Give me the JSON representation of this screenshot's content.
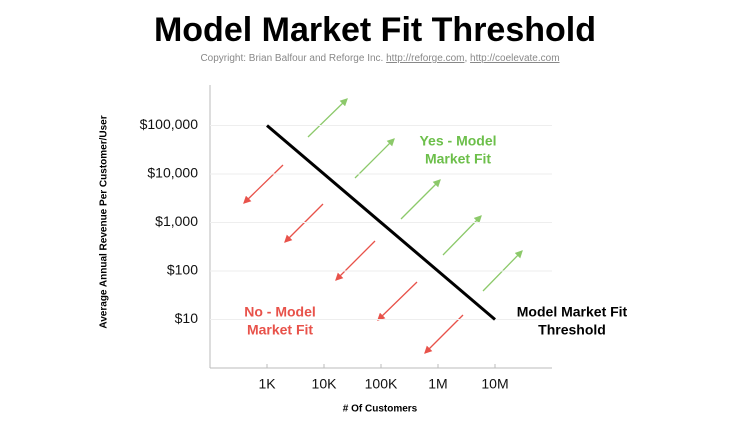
{
  "chart_data": {
    "type": "line",
    "title": "Model Market Fit Threshold",
    "subtitle_parts": [
      "Copyright:  Brian Balfour and Reforge Inc. ",
      "http://reforge.com",
      ", ",
      "http://coelevate.com"
    ],
    "x_label": "# Of Customers",
    "y_label": "Average Annual Revenue Per Customer/User",
    "x": [
      1000,
      10000000
    ],
    "series": [
      {
        "color": "#000000",
        "values": [
          100000,
          10
        ]
      }
    ],
    "xscale": "log",
    "yscale": "log",
    "xlim": [
      100,
      100000000
    ],
    "ylim": [
      1,
      1000000
    ],
    "xticks": [
      {
        "value": 1000,
        "label": "1K"
      },
      {
        "value": 10000,
        "label": "10K"
      },
      {
        "value": 100000,
        "label": "100K"
      },
      {
        "value": 1000000,
        "label": "1M"
      },
      {
        "value": 10000000,
        "label": "10M"
      }
    ],
    "yticks": [
      {
        "value": 10,
        "label": "$10"
      },
      {
        "value": 100,
        "label": "$100"
      },
      {
        "value": 1000,
        "label": "$1,000"
      },
      {
        "value": 10000,
        "label": "$10,000"
      },
      {
        "value": 100000,
        "label": "$100,000"
      }
    ],
    "grid": true,
    "annotations": [
      {
        "lines": [
          "Yes - Model",
          "Market Fit"
        ],
        "color": "#6cbf4a"
      },
      {
        "lines": [
          "No - Model",
          "Market Fit"
        ],
        "color": "#e8524a"
      },
      {
        "lines": [
          "Model Market Fit",
          "Threshold"
        ],
        "color": "#000000"
      }
    ]
  }
}
